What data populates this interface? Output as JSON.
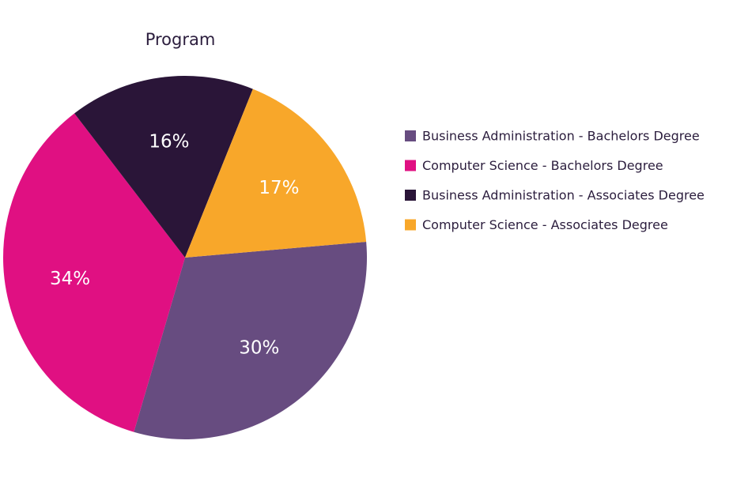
{
  "chart_data": {
    "type": "pie",
    "title": "Program",
    "labels": [
      "Business Administration - Bachelors Degree",
      "Computer Science - Bachelors Degree",
      "Business Administration - Associates Degree",
      "Computer Science - Associates Degree"
    ],
    "values": [
      30,
      34,
      16,
      17
    ],
    "value_labels": [
      "30%",
      "34%",
      "16%",
      "17%"
    ],
    "colors": [
      "#674c80",
      "#e01082",
      "#2a1538",
      "#f8a72a"
    ],
    "start_angle_deg": -5,
    "direction": "clockwise",
    "legend_position": "right"
  }
}
